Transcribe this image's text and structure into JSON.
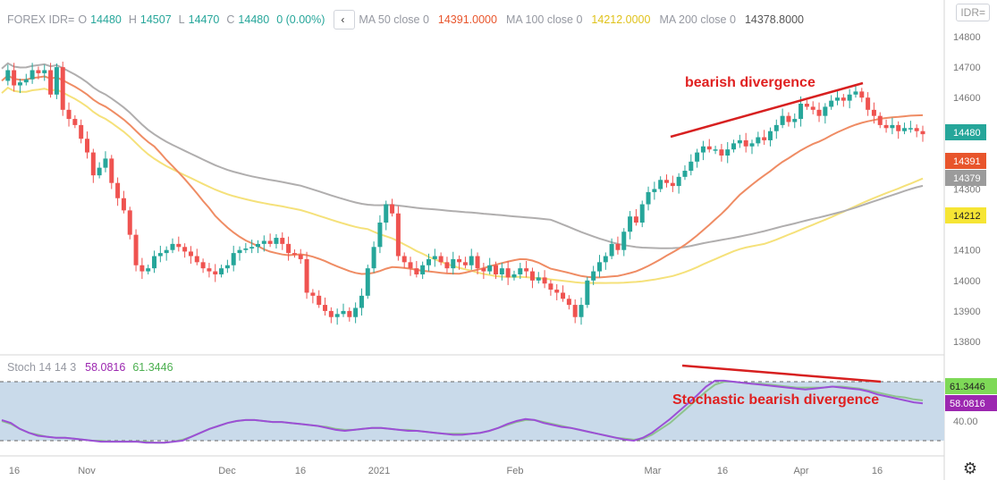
{
  "header": {
    "symbol_label": "FOREX IDR=",
    "o_label": "O",
    "o_value": "14480",
    "h_label": "H",
    "h_value": "14507",
    "l_label": "L",
    "l_value": "14470",
    "c_label": "C",
    "c_value": "14480",
    "change": "0 (0.00%)",
    "collapse_icon": "chevron-left-icon",
    "ma50_label": "MA 50 close 0",
    "ma50_value": "14391.0000",
    "ma100_label": "MA 100 close 0",
    "ma100_value": "14212.0000",
    "ma200_label": "MA 200 close 0",
    "ma200_value": "14378.8000"
  },
  "symbol_button": "IDR=",
  "stoch_header": {
    "label": "Stoch 14 14 3",
    "k_value": "58.0816",
    "d_value": "61.3446"
  },
  "annotations": {
    "price_divergence": "bearish divergence",
    "stoch_divergence": "Stochastic bearish divergence"
  },
  "settings_icon": "gear-icon",
  "colors": {
    "up": "#26a69a",
    "down": "#ef5350",
    "ma50": "#ef8c64",
    "ma100": "#f5e17a",
    "ma200": "#b0aeae",
    "stoch_k": "#9c4fd6",
    "stoch_d": "#8ec48e",
    "stoch_band": "#c9daea",
    "annotation": "#e02020"
  },
  "chart_data": {
    "type": "candlestick",
    "x_axis_labels": [
      "16",
      "Nov",
      "Dec",
      "16",
      "2021",
      "Feb",
      "Mar",
      "16",
      "Apr",
      "16"
    ],
    "price_axis": {
      "ticks": [
        13800,
        13900,
        14000,
        14100,
        14200,
        14300,
        14400,
        14500,
        14600,
        14700,
        14800
      ],
      "range": [
        13760,
        14840
      ]
    },
    "price_badges": [
      {
        "label": "14480",
        "value": 14480,
        "color": "#26a69a"
      },
      {
        "label": "14391",
        "value": 14391,
        "color": "#e8552c"
      },
      {
        "label": "14379",
        "value": 14379,
        "color": "#9b9b9b"
      },
      {
        "label": "14212",
        "value": 14212,
        "color": "#f6e534"
      }
    ],
    "close_series": [
      14655,
      14690,
      14640,
      14650,
      14660,
      14690,
      14680,
      14690,
      14610,
      14700,
      14560,
      14530,
      14510,
      14465,
      14420,
      14345,
      14370,
      14400,
      14320,
      14270,
      14230,
      14150,
      14050,
      14030,
      14040,
      14080,
      14090,
      14100,
      14120,
      14110,
      14095,
      14080,
      14060,
      14040,
      14030,
      14020,
      14040,
      14050,
      14090,
      14100,
      14105,
      14110,
      14120,
      14130,
      14120,
      14140,
      14120,
      14090,
      14085,
      14070,
      13960,
      13950,
      13920,
      13900,
      13880,
      13890,
      13900,
      13880,
      13910,
      13950,
      14040,
      14110,
      14190,
      14250,
      14220,
      14080,
      14060,
      14040,
      14020,
      14050,
      14070,
      14080,
      14060,
      14040,
      14070,
      14060,
      14050,
      14080,
      14040,
      14030,
      14050,
      14020,
      14040,
      14010,
      14020,
      14040,
      14030,
      14000,
      14010,
      13990,
      13970,
      13960,
      13940,
      13920,
      13880,
      13920,
      14000,
      14030,
      14060,
      14080,
      14120,
      14100,
      14160,
      14210,
      14190,
      14250,
      14290,
      14300,
      14330,
      14320,
      14310,
      14340,
      14360,
      14390,
      14420,
      14440,
      14430,
      14430,
      14410,
      14430,
      14450,
      14460,
      14440,
      14450,
      14470,
      14460,
      14490,
      14510,
      14540,
      14520,
      14530,
      14580,
      14570,
      14560,
      14540,
      14570,
      14590,
      14600,
      14590,
      14610,
      14620,
      14600,
      14560,
      14540,
      14510,
      14500,
      14510,
      14490,
      14500,
      14500,
      14490,
      14480
    ],
    "moving_averages": [
      {
        "name": "MA 50",
        "value": 14391
      },
      {
        "name": "MA 100",
        "value": 14212
      },
      {
        "name": "MA 200",
        "value": 14378.8
      }
    ],
    "stochastic": {
      "params": "14 14 3",
      "ticks": [
        40.0
      ],
      "k_final": 58.0816,
      "d_final": 61.3446,
      "k_series": [
        41,
        38,
        32,
        28,
        25,
        24,
        23,
        23,
        22,
        21,
        20,
        19,
        19,
        19,
        19,
        19,
        18,
        18,
        18,
        19,
        20,
        24,
        28,
        32,
        35,
        38,
        40,
        41,
        41,
        40,
        39,
        39,
        38,
        37,
        36,
        35,
        33,
        31,
        30,
        31,
        32,
        33,
        33,
        32,
        31,
        30,
        30,
        29,
        28,
        27,
        26,
        26,
        27,
        28,
        30,
        33,
        37,
        40,
        42,
        41,
        38,
        36,
        34,
        33,
        31,
        29,
        27,
        25,
        23,
        21,
        20,
        23,
        28,
        35,
        42,
        50,
        58,
        66,
        75,
        81,
        81,
        80,
        79,
        78,
        77,
        76,
        75,
        74,
        73,
        72,
        73,
        74,
        75,
        74,
        73,
        72,
        70,
        67,
        65,
        63,
        61,
        59,
        58
      ],
      "d_series": [
        40,
        37,
        32,
        28,
        26,
        24,
        23,
        23,
        22,
        21,
        20,
        20,
        19,
        19,
        19,
        19,
        19,
        18,
        18,
        19,
        21,
        24,
        28,
        32,
        35,
        38,
        40,
        41,
        41,
        40,
        39,
        39,
        38,
        37,
        36,
        35,
        34,
        32,
        31,
        31,
        32,
        33,
        33,
        32,
        31,
        31,
        30,
        29,
        28,
        27,
        27,
        27,
        27,
        28,
        30,
        33,
        36,
        39,
        41,
        41,
        39,
        37,
        35,
        33,
        31,
        29,
        27,
        25,
        23,
        22,
        21,
        22,
        26,
        32,
        38,
        46,
        54,
        62,
        70,
        77,
        80,
        80,
        79,
        78,
        78,
        77,
        76,
        75,
        74,
        74,
        74,
        74,
        75,
        75,
        74,
        73,
        71,
        69,
        67,
        65,
        64,
        62,
        61
      ]
    }
  }
}
